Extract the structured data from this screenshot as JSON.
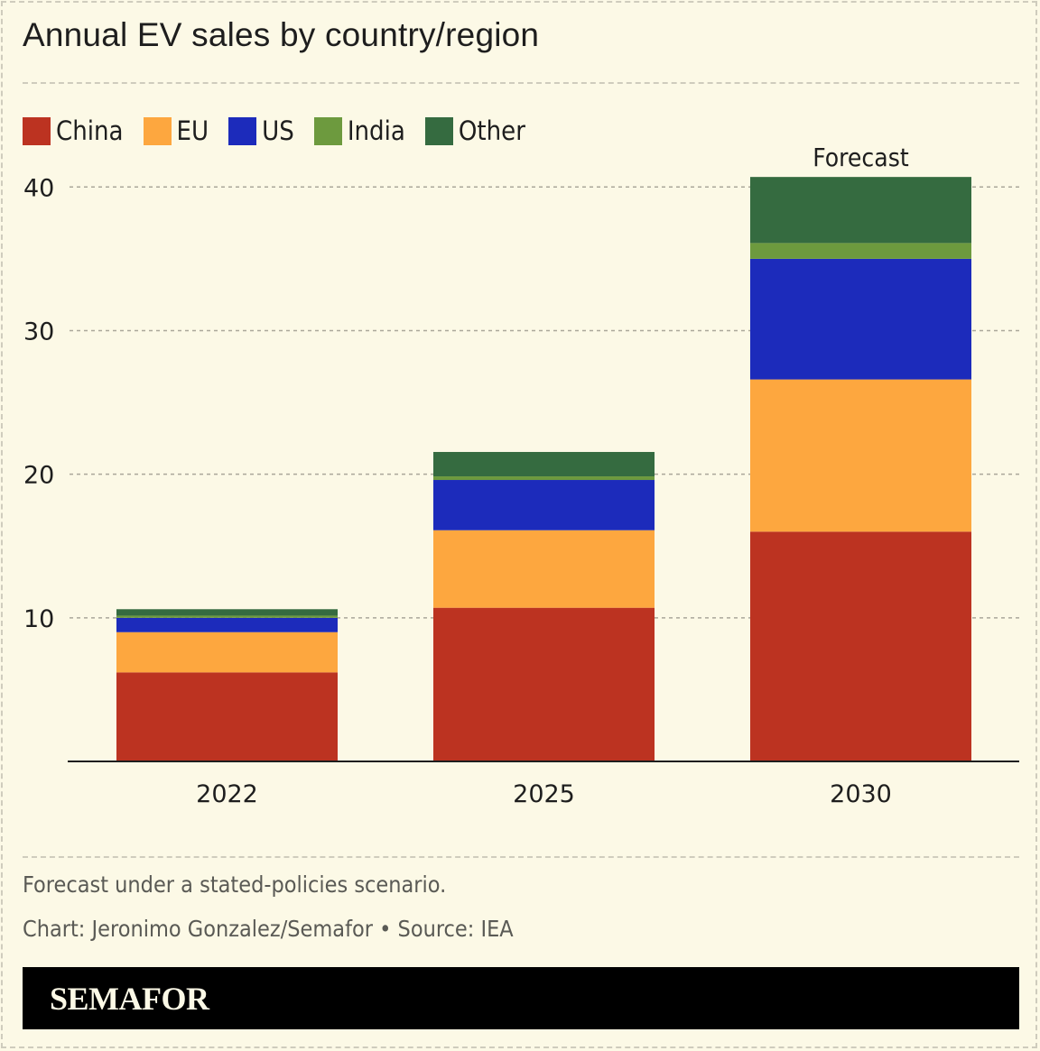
{
  "header": {
    "title": "Annual EV sales by country/region"
  },
  "legend": [
    {
      "label": "China",
      "color": "#bc3321"
    },
    {
      "label": "EU",
      "color": "#fda73f"
    },
    {
      "label": "US",
      "color": "#1c2bbb"
    },
    {
      "label": "India",
      "color": "#6d9a3e"
    },
    {
      "label": "Other",
      "color": "#356b40"
    }
  ],
  "chart_data": {
    "type": "bar",
    "stacked": true,
    "title": "Annual EV sales by country/region",
    "xlabel": "",
    "ylabel": "",
    "categories": [
      "2022",
      "2025",
      "2030"
    ],
    "series": [
      {
        "name": "China",
        "color": "#bc3321",
        "values": [
          6.2,
          10.7,
          16.0
        ]
      },
      {
        "name": "EU",
        "color": "#fda73f",
        "values": [
          2.8,
          5.4,
          10.6
        ]
      },
      {
        "name": "US",
        "color": "#1c2bbb",
        "values": [
          1.0,
          3.5,
          8.4
        ]
      },
      {
        "name": "India",
        "color": "#6d9a3e",
        "values": [
          0.15,
          0.25,
          1.1
        ]
      },
      {
        "name": "Other",
        "color": "#356b40",
        "values": [
          0.45,
          1.7,
          4.6
        ]
      }
    ],
    "ylim": [
      0,
      40
    ],
    "yticks": [
      10,
      20,
      30,
      40
    ],
    "grid": true,
    "legend_position": "top-left",
    "annotations": [
      {
        "category": "2030",
        "text": "Forecast"
      }
    ]
  },
  "footer": {
    "note": "Forecast under a stated-policies scenario.",
    "credit": "Chart: Jeronimo Gonzalez/Semafor • Source: IEA",
    "brand": "SEMAFOR"
  }
}
